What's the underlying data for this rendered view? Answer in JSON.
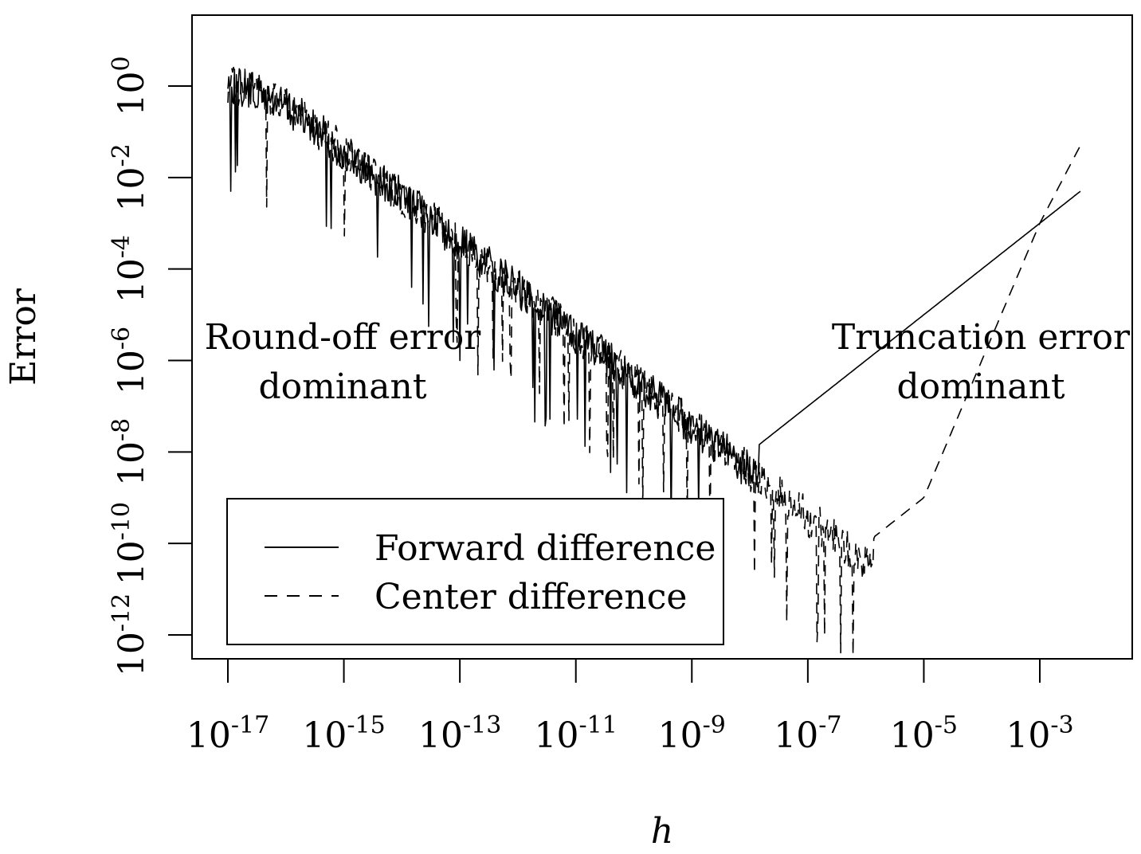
{
  "chart_data": {
    "type": "line",
    "xlabel": "h",
    "ylabel": "Error",
    "x_scale": "log10",
    "y_scale": "log10",
    "xlim": [
      1e-17,
      0.01
    ],
    "ylim": [
      1e-12,
      10
    ],
    "x_ticks": [
      {
        "value": 1e-17,
        "base": "10",
        "exp": "-17"
      },
      {
        "value": 1e-15,
        "base": "10",
        "exp": "-15"
      },
      {
        "value": 1e-13,
        "base": "10",
        "exp": "-13"
      },
      {
        "value": 1e-11,
        "base": "10",
        "exp": "-11"
      },
      {
        "value": 1e-09,
        "base": "10",
        "exp": "-9"
      },
      {
        "value": 1e-07,
        "base": "10",
        "exp": "-7"
      },
      {
        "value": 1e-05,
        "base": "10",
        "exp": "-5"
      },
      {
        "value": 0.001,
        "base": "10",
        "exp": "-3"
      }
    ],
    "y_ticks": [
      {
        "value": 1,
        "base": "10",
        "exp": "0"
      },
      {
        "value": 0.01,
        "base": "10",
        "exp": "-2"
      },
      {
        "value": 0.0001,
        "base": "10",
        "exp": "-4"
      },
      {
        "value": 1e-06,
        "base": "10",
        "exp": "-6"
      },
      {
        "value": 1e-08,
        "base": "10",
        "exp": "-8"
      },
      {
        "value": 1e-10,
        "base": "10",
        "exp": "-10"
      },
      {
        "value": 1e-12,
        "base": "10",
        "exp": "-12"
      }
    ],
    "series": [
      {
        "name": "Forward difference",
        "style": "solid",
        "x": [
          1e-17,
          3e-17,
          1e-16,
          1e-15,
          1e-14,
          1e-13,
          1e-12,
          1e-11,
          1e-10,
          1e-09,
          1e-08,
          1e-07,
          1e-06,
          1e-05,
          0.0001,
          0.001,
          0.005
        ],
        "y": [
          3,
          2,
          1,
          0.1,
          0.01,
          0.001,
          0.0001,
          1e-05,
          1e-06,
          1e-07,
          1e-08,
          1e-07,
          1e-06,
          1e-05,
          0.0001,
          0.001,
          0.005
        ]
      },
      {
        "name": "Center difference",
        "style": "dashed",
        "x": [
          1e-17,
          3e-17,
          1e-16,
          1e-15,
          1e-14,
          1e-13,
          1e-12,
          1e-11,
          1e-10,
          1e-09,
          1e-08,
          1e-07,
          1e-06,
          1e-05,
          0.0001,
          0.001,
          0.005
        ],
        "y": [
          3,
          2,
          1,
          0.1,
          0.01,
          0.001,
          0.0001,
          1e-05,
          1e-06,
          1e-07,
          1e-08,
          1e-09,
          1e-10,
          1e-09,
          1e-06,
          0.001,
          0.05
        ]
      }
    ],
    "annotations": [
      {
        "lines": [
          "Round-off error",
          "dominant"
        ],
        "x": 1e-14,
        "y": 1e-06
      },
      {
        "lines": [
          "Truncation error",
          "dominant"
        ],
        "x": 0.0001,
        "y": 1e-06
      }
    ],
    "legend": {
      "position": "bottom-left"
    },
    "grid": false
  }
}
